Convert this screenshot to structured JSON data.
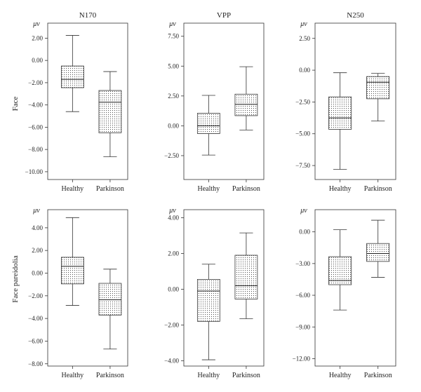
{
  "row_labels": [
    "Face",
    "Face pareidolia"
  ],
  "chart_data": [
    {
      "type": "box",
      "title": "N170",
      "ylabel": "μv",
      "row": "Face",
      "ylim": [
        -10.7,
        3.35
      ],
      "ticks": [
        2.0,
        0.0,
        -2.0,
        -4.0,
        -6.0,
        -8.0,
        -10.0
      ],
      "tick_labels": [
        "2.00",
        "0.00",
        "−2.00",
        "−4.00",
        "−6.00",
        "−8.00",
        "−10.00"
      ],
      "categories": [
        "Healthy",
        "Parkinson"
      ],
      "boxes": [
        {
          "min": -4.6,
          "q1": -2.45,
          "median": -1.7,
          "q3": -0.5,
          "max": 2.25
        },
        {
          "min": -8.65,
          "q1": -6.5,
          "median": -3.75,
          "q3": -2.7,
          "max": -1.0
        }
      ]
    },
    {
      "type": "box",
      "title": "VPP",
      "ylabel": "μv",
      "row": "Face",
      "ylim": [
        -4.5,
        8.6
      ],
      "ticks": [
        7.5,
        5.0,
        2.5,
        0.0,
        -2.5
      ],
      "tick_labels": [
        "7.50",
        "5.00",
        "2.50",
        "0.00",
        "−2.50"
      ],
      "categories": [
        "Healthy",
        "Parkinson"
      ],
      "boxes": [
        {
          "min": -2.45,
          "q1": -0.65,
          "median": 0.0,
          "q3": 1.05,
          "max": 2.55
        },
        {
          "min": -0.35,
          "q1": 0.85,
          "median": 1.8,
          "q3": 2.65,
          "max": 4.95
        }
      ]
    },
    {
      "type": "box",
      "title": "N250",
      "ylabel": "μv",
      "row": "Face",
      "ylim": [
        -8.6,
        3.7
      ],
      "ticks": [
        2.5,
        0.0,
        -2.5,
        -5.0,
        -7.5
      ],
      "tick_labels": [
        "2.50",
        "0.00",
        "−2.50",
        "−5.00",
        "−7.50"
      ],
      "categories": [
        "Healthy",
        "Parkinson"
      ],
      "boxes": [
        {
          "min": -7.8,
          "q1": -4.65,
          "median": -3.75,
          "q3": -2.1,
          "max": -0.2
        },
        {
          "min": -4.0,
          "q1": -2.25,
          "median": -0.95,
          "q3": -0.5,
          "max": -0.25
        }
      ]
    },
    {
      "type": "box",
      "title": "",
      "ylabel": "μv",
      "row": "Face pareidolia",
      "ylim": [
        -8.2,
        5.6
      ],
      "ticks": [
        4.0,
        2.0,
        0.0,
        -2.0,
        -4.0,
        -6.0,
        -8.0
      ],
      "tick_labels": [
        "4.00",
        "2.00",
        "0.00",
        "−2.00",
        "−4.00",
        "−6.00",
        "−8.00"
      ],
      "categories": [
        "Healthy",
        "Parkinson"
      ],
      "boxes": [
        {
          "min": -2.85,
          "q1": -0.95,
          "median": 0.6,
          "q3": 1.4,
          "max": 4.9
        },
        {
          "min": -6.7,
          "q1": -3.7,
          "median": -2.35,
          "q3": -0.9,
          "max": 0.35
        }
      ]
    },
    {
      "type": "box",
      "title": "",
      "ylabel": "μv",
      "row": "Face pareidolia",
      "ylim": [
        -4.3,
        4.45
      ],
      "ticks": [
        4.0,
        2.0,
        0.0,
        -2.0,
        -4.0
      ],
      "tick_labels": [
        "4.00",
        "2.00",
        "0.00",
        "−2.00",
        "−4.00"
      ],
      "categories": [
        "Healthy",
        "Parkinson"
      ],
      "boxes": [
        {
          "min": -3.95,
          "q1": -1.8,
          "median": -0.1,
          "q3": 0.55,
          "max": 1.4
        },
        {
          "min": -1.65,
          "q1": -0.55,
          "median": 0.2,
          "q3": 1.9,
          "max": 3.15
        }
      ]
    },
    {
      "type": "box",
      "title": "",
      "ylabel": "μv",
      "row": "Face pareidolia",
      "ylim": [
        -12.7,
        2.1
      ],
      "ticks": [
        0.0,
        -3.0,
        -6.0,
        -9.0,
        -12.0
      ],
      "tick_labels": [
        "0.00",
        "−3.00",
        "−6.00",
        "−9.00",
        "−12.00"
      ],
      "categories": [
        "Healthy",
        "Parkinson"
      ],
      "boxes": [
        {
          "min": -7.4,
          "q1": -5.0,
          "median": -4.6,
          "q3": -2.35,
          "max": 0.2
        },
        {
          "min": -4.3,
          "q1": -2.8,
          "median": -2.05,
          "q3": -1.1,
          "max": 1.1
        }
      ]
    }
  ]
}
